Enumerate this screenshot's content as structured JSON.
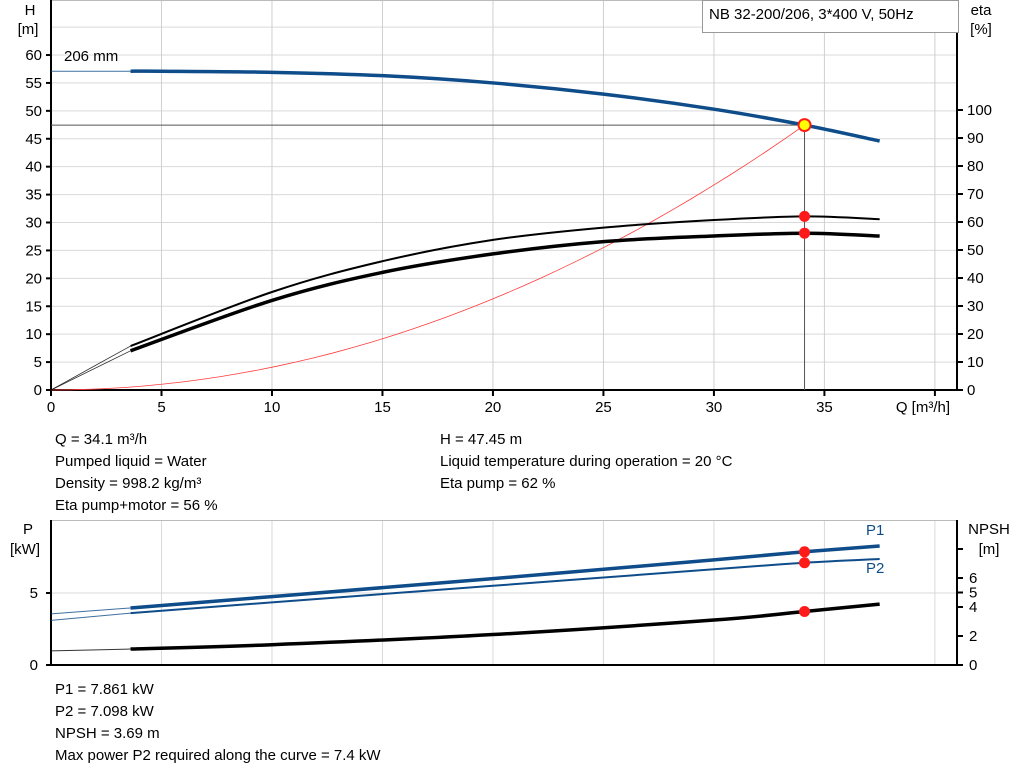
{
  "chart_data": [
    {
      "type": "line",
      "title": "NB 32-200/206, 3*400 V, 50Hz",
      "xlabel": "Q [m³/h]",
      "ylabel_left": [
        "H",
        "[m]"
      ],
      "ylabel_right": [
        "eta",
        "[%]"
      ],
      "xlim": [
        0,
        41
      ],
      "ylim_left": [
        0,
        70
      ],
      "ylim_right": [
        0,
        100
      ],
      "grid": true,
      "x_ticks": [
        0,
        5,
        10,
        15,
        20,
        25,
        30,
        35
      ],
      "y_left_ticks": [
        0,
        5,
        10,
        15,
        20,
        25,
        30,
        35,
        40,
        45,
        50,
        55,
        60
      ],
      "y_right_ticks": [
        0,
        10,
        20,
        30,
        40,
        50,
        60,
        70,
        80,
        90,
        100
      ],
      "annotation": "206 mm",
      "series": [
        {
          "key": "H",
          "axis": "left",
          "color": "#0e4c8a",
          "thick_from": 3.6,
          "x": [
            0,
            3.6,
            5,
            10,
            15,
            20,
            25,
            30,
            34.1,
            37.5
          ],
          "y": [
            57.1,
            57.1,
            57.1,
            56.9,
            56.3,
            55.0,
            53.0,
            50.3,
            47.45,
            44.6
          ]
        },
        {
          "key": "eta_pump",
          "axis": "right",
          "color": "#000000",
          "thick_from": 3.6,
          "x": [
            0,
            3.6,
            10,
            15,
            20,
            25,
            30,
            34.1,
            37.5
          ],
          "y": [
            0,
            15.7,
            35,
            46,
            53.6,
            58,
            60.7,
            62,
            61
          ]
        },
        {
          "key": "eta_total",
          "axis": "right",
          "color": "#000000",
          "thick_from": 3.6,
          "x": [
            0,
            3.6,
            10,
            15,
            20,
            25,
            30,
            34.1,
            37.5
          ],
          "y": [
            0,
            14,
            32,
            42,
            48.6,
            53,
            55,
            56,
            55
          ]
        },
        {
          "key": "system",
          "axis": "left",
          "color": "#ff3b3b",
          "quadratic_k": 0.0408,
          "x_range": [
            0,
            34.1
          ]
        }
      ],
      "duty_point": {
        "Q": 34.1,
        "H": 47.45,
        "eta_pump": 62,
        "eta_total": 56
      }
    },
    {
      "type": "line",
      "xlim": [
        0,
        41
      ],
      "ylabel_left": [
        "P",
        "[kW]"
      ],
      "ylabel_right": [
        "NPSH",
        "[m]"
      ],
      "ylim_left": [
        0,
        10
      ],
      "ylim_right": [
        0,
        10
      ],
      "y_left_ticks": [
        0,
        5
      ],
      "y_right_ticks": [
        0,
        2,
        4,
        5,
        6,
        8
      ],
      "y_right_tick_labels": [
        "0",
        "2",
        "4",
        "5",
        "6",
        ""
      ],
      "grid": true,
      "series": [
        {
          "name": "P1",
          "axis": "left",
          "color": "#0e4c8a",
          "thick_from": 3.6,
          "x": [
            0,
            3.6,
            10,
            20,
            30,
            34.1,
            37.5
          ],
          "y": [
            3.55,
            3.96,
            4.75,
            6.0,
            7.3,
            7.861,
            8.26
          ]
        },
        {
          "name": "P2",
          "axis": "left",
          "color": "#0e4c8a",
          "thick_from": 3.6,
          "x": [
            0,
            3.6,
            10,
            20,
            30,
            34.1,
            37.5
          ],
          "y": [
            3.1,
            3.6,
            4.35,
            5.5,
            6.65,
            7.098,
            7.36
          ]
        },
        {
          "key": "NPSH",
          "axis": "right",
          "color": "#000000",
          "thick_from": 3.6,
          "x": [
            0,
            3.6,
            10,
            20,
            30,
            34.1,
            37.5
          ],
          "y": [
            0.97,
            1.1,
            1.4,
            2.1,
            3.1,
            3.69,
            4.2
          ]
        }
      ],
      "duty_point": {
        "Q": 34.1,
        "P1": 7.861,
        "P2": 7.098,
        "NPSH": 3.69
      }
    }
  ],
  "info_top": {
    "left": [
      "Q = 34.1 m³/h",
      "Pumped liquid = Water",
      "Density = 998.2 kg/m³",
      "Eta pump+motor = 56 %"
    ],
    "right": [
      "H = 47.45 m",
      "Liquid temperature during operation = 20 °C",
      "Eta pump = 62 %"
    ]
  },
  "info_bottom": [
    "P1 = 7.861 kW",
    "P2 = 7.098 kW",
    "NPSH = 3.69 m",
    "Max power P2 required along the curve = 7.4 kW"
  ]
}
